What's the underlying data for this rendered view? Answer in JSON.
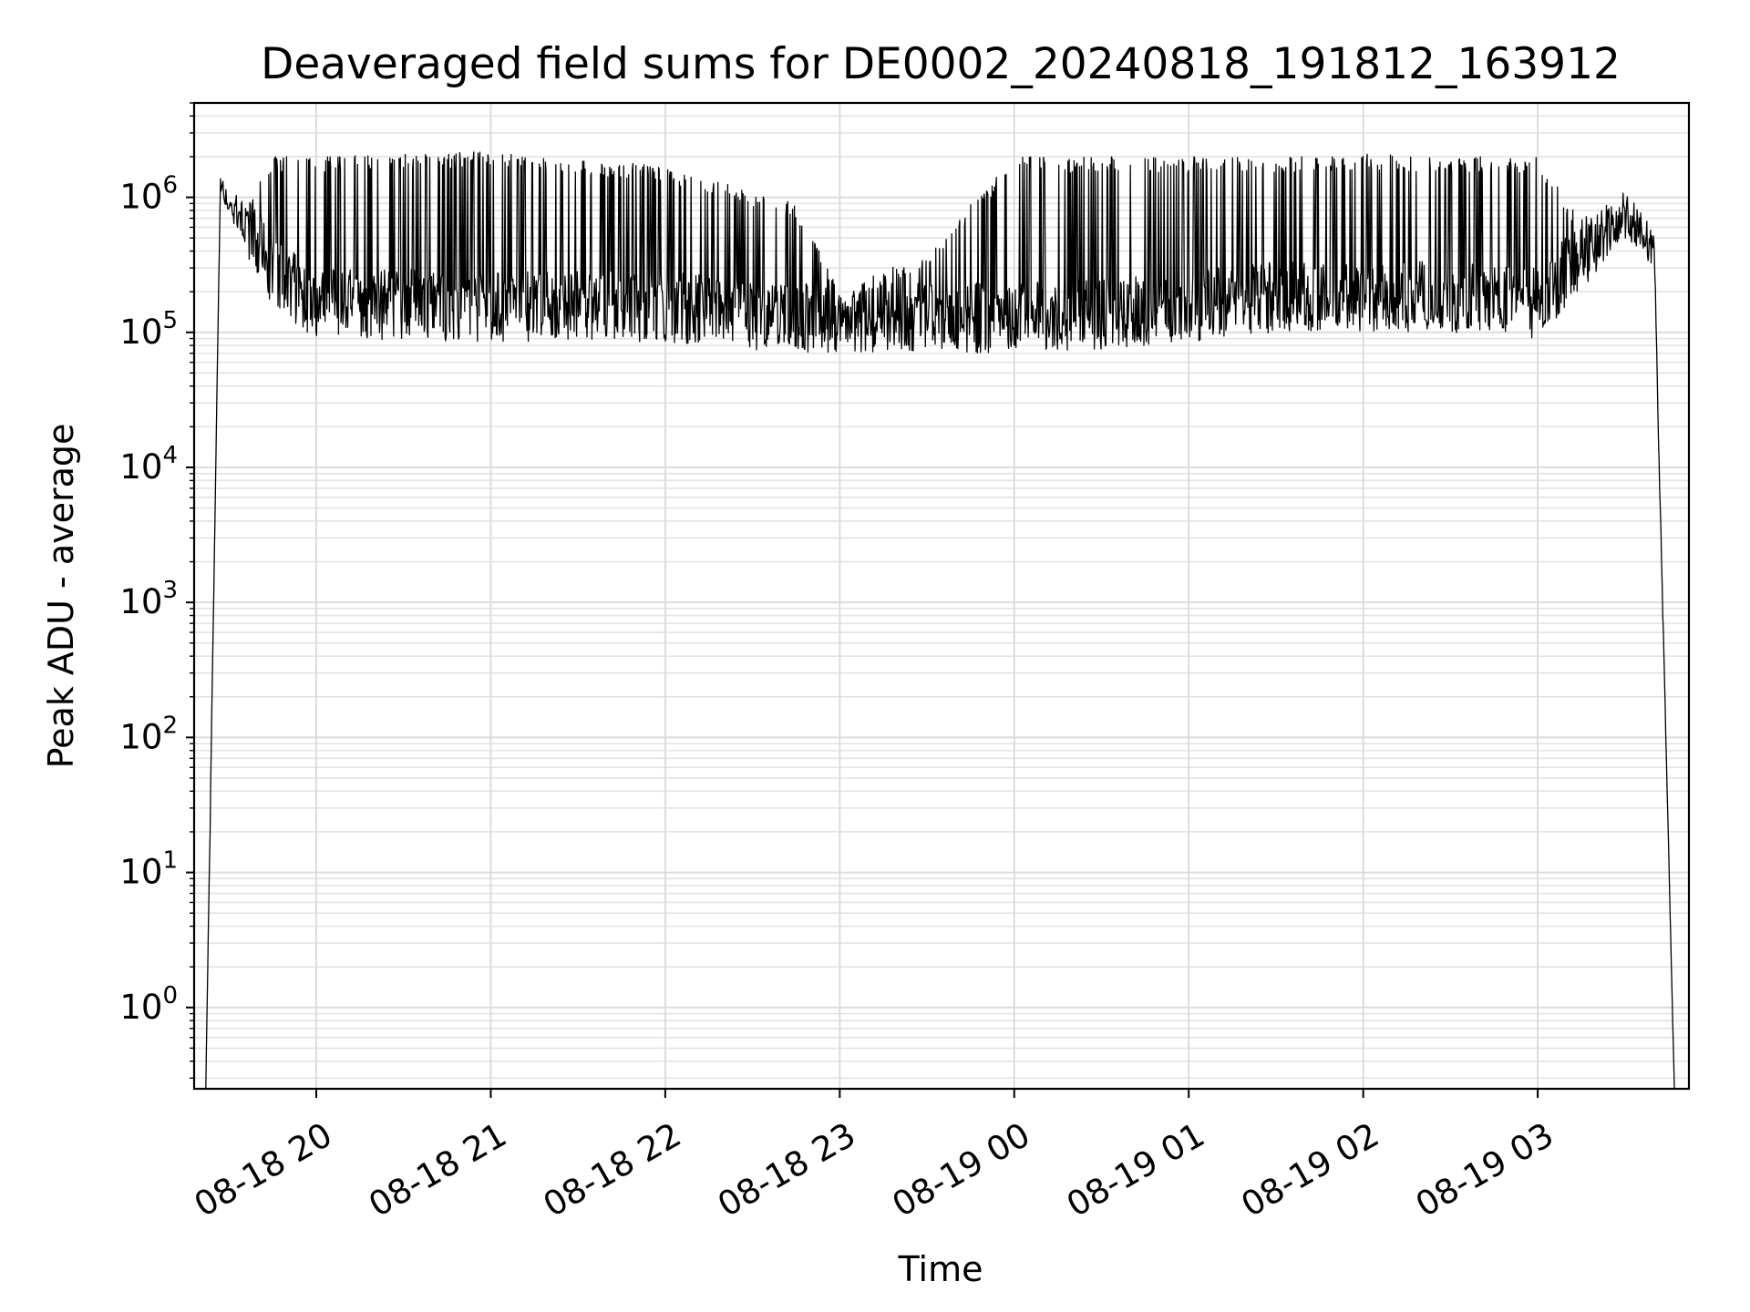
{
  "chart_data": {
    "type": "line",
    "title": "Deaveraged field sums for DE0002_20240818_191812_163912",
    "xlabel": "Time",
    "ylabel": "Peak ADU - average",
    "yscale": "log",
    "ylim": [
      0.25,
      5000000
    ],
    "xlim": [
      "2024-08-18 19:18",
      "2024-08-19 03:52"
    ],
    "grid": true,
    "line_color": "#000000",
    "y_ticks": [
      {
        "base": "10",
        "exp": "0",
        "value": 1
      },
      {
        "base": "10",
        "exp": "1",
        "value": 10
      },
      {
        "base": "10",
        "exp": "2",
        "value": 100
      },
      {
        "base": "10",
        "exp": "3",
        "value": 1000
      },
      {
        "base": "10",
        "exp": "4",
        "value": 10000
      },
      {
        "base": "10",
        "exp": "5",
        "value": 100000
      },
      {
        "base": "10",
        "exp": "6",
        "value": 1000000
      }
    ],
    "x_ticks": [
      {
        "label": "08-18 20",
        "time": "2024-08-18 20:00"
      },
      {
        "label": "08-18 21",
        "time": "2024-08-18 21:00"
      },
      {
        "label": "08-18 22",
        "time": "2024-08-18 22:00"
      },
      {
        "label": "08-18 23",
        "time": "2024-08-18 23:00"
      },
      {
        "label": "08-19 00",
        "time": "2024-08-19 00:00"
      },
      {
        "label": "08-19 01",
        "time": "2024-08-19 01:00"
      },
      {
        "label": "08-19 02",
        "time": "2024-08-19 02:00"
      },
      {
        "label": "08-19 03",
        "time": "2024-08-19 03:00"
      }
    ],
    "series": [
      {
        "style": "dense noisy line with frequent spikes",
        "envelope": [
          {
            "time": "2024-08-18 19:22",
            "min": 0.25,
            "max": 0.25
          },
          {
            "time": "2024-08-18 19:27",
            "min": 1000000,
            "max": 1500000
          },
          {
            "time": "2024-08-18 19:35",
            "min": 400000,
            "max": 900000
          },
          {
            "time": "2024-08-18 19:45",
            "min": 150000,
            "max": 2000000
          },
          {
            "time": "2024-08-18 20:00",
            "min": 90000,
            "max": 2000000
          },
          {
            "time": "2024-08-18 21:00",
            "min": 85000,
            "max": 2200000
          },
          {
            "time": "2024-08-18 22:00",
            "min": 85000,
            "max": 1700000
          },
          {
            "time": "2024-08-18 22:45",
            "min": 70000,
            "max": 900000
          },
          {
            "time": "2024-08-18 23:00",
            "min": 70000,
            "max": 200000
          },
          {
            "time": "2024-08-18 23:30",
            "min": 70000,
            "max": 400000
          },
          {
            "time": "2024-08-19 00:00",
            "min": 70000,
            "max": 2000000
          },
          {
            "time": "2024-08-19 00:30",
            "min": 75000,
            "max": 2000000
          },
          {
            "time": "2024-08-19 01:00",
            "min": 85000,
            "max": 2000000
          },
          {
            "time": "2024-08-19 01:30",
            "min": 100000,
            "max": 2000000
          },
          {
            "time": "2024-08-19 02:00",
            "min": 100000,
            "max": 2100000
          },
          {
            "time": "2024-08-19 02:30",
            "min": 100000,
            "max": 2000000
          },
          {
            "time": "2024-08-19 03:00",
            "min": 90000,
            "max": 2000000
          },
          {
            "time": "2024-08-19 03:15",
            "min": 200000,
            "max": 700000
          },
          {
            "time": "2024-08-19 03:30",
            "min": 500000,
            "max": 1100000
          },
          {
            "time": "2024-08-19 03:40",
            "min": 300000,
            "max": 600000
          },
          {
            "time": "2024-08-19 03:47",
            "min": 0.25,
            "max": 0.25
          }
        ]
      }
    ]
  }
}
